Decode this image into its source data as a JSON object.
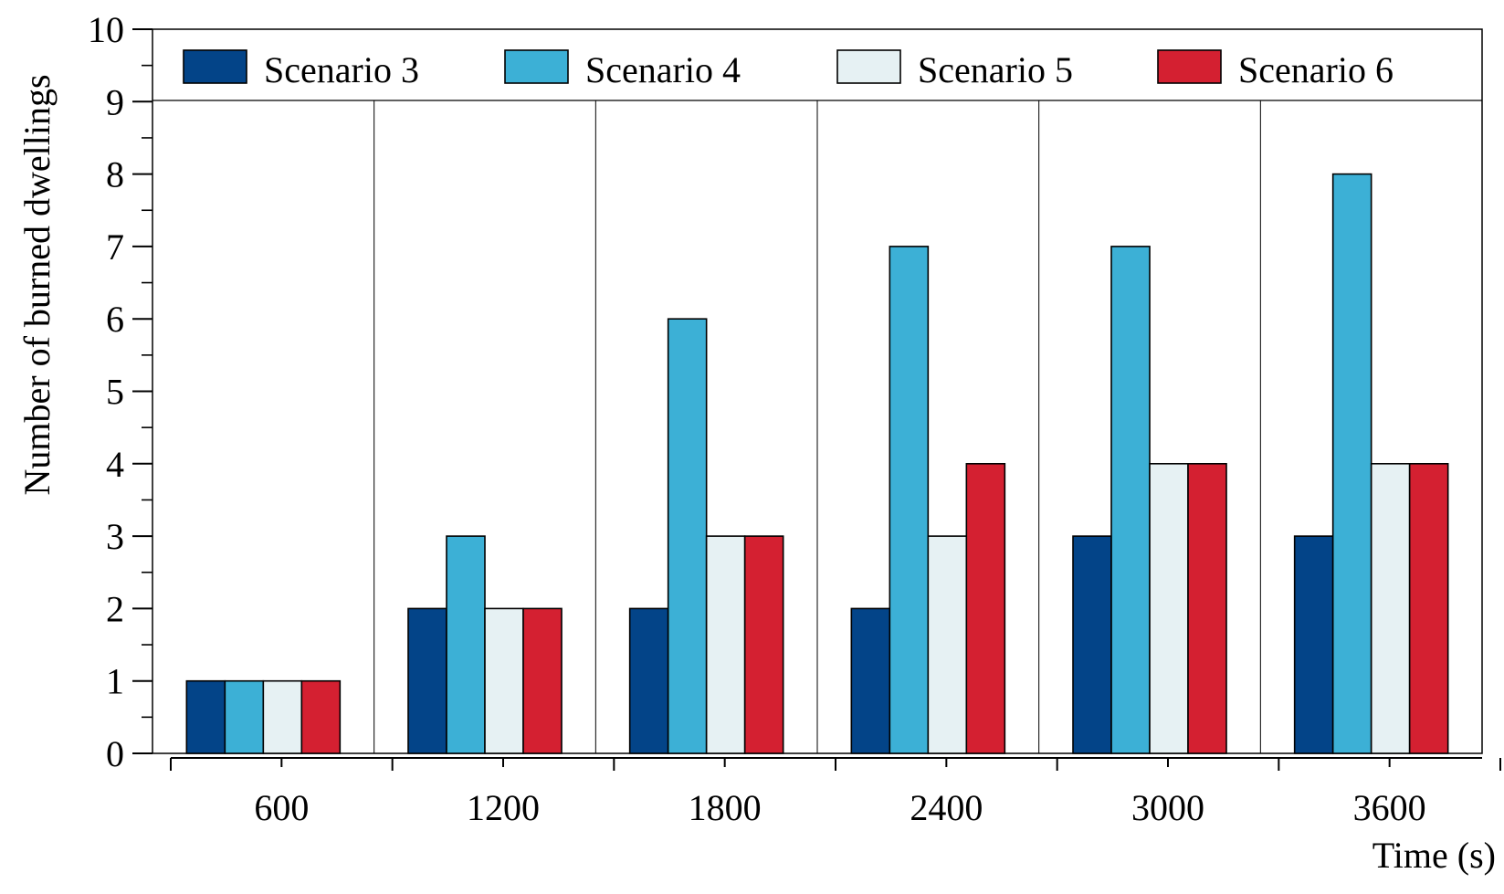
{
  "chart_data": {
    "type": "bar",
    "title": "",
    "xlabel": "Time (s)",
    "ylabel": "Number of burned dwellings",
    "categories": [
      "600",
      "1200",
      "1800",
      "2400",
      "3000",
      "3600"
    ],
    "series": [
      {
        "name": "Scenario 3",
        "color": "#034488",
        "values": [
          1,
          2,
          2,
          2,
          3,
          3
        ]
      },
      {
        "name": "Scenario 4",
        "color": "#3cb0d6",
        "values": [
          1,
          3,
          6,
          7,
          7,
          8
        ]
      },
      {
        "name": "Scenario 5",
        "color": "#e6f1f3",
        "values": [
          1,
          2,
          3,
          3,
          4,
          4
        ]
      },
      {
        "name": "Scenario 6",
        "color": "#d42031",
        "values": [
          1,
          2,
          3,
          4,
          4,
          4
        ]
      }
    ],
    "ylim": [
      0,
      10
    ],
    "yticks": [
      0,
      1,
      2,
      3,
      4,
      5,
      6,
      7,
      8,
      9,
      10
    ],
    "grid": "vertical separators between categories",
    "legend": "top, inside plot"
  }
}
